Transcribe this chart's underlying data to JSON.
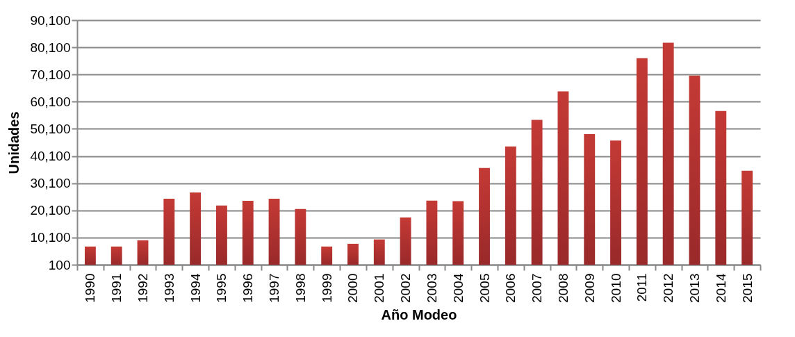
{
  "chart_data": {
    "type": "bar",
    "xlabel": "Año Modeo",
    "ylabel": "Unidades",
    "categories": [
      "1990",
      "1991",
      "1992",
      "1993",
      "1994",
      "1995",
      "1996",
      "1997",
      "1998",
      "1999",
      "2000",
      "2001",
      "2002",
      "2003",
      "2004",
      "2005",
      "2006",
      "2007",
      "2008",
      "2009",
      "2010",
      "2011",
      "2012",
      "2013",
      "2014",
      "2015"
    ],
    "values": [
      6800,
      6800,
      9100,
      24400,
      26700,
      21900,
      23600,
      24400,
      20600,
      6800,
      7800,
      9400,
      17500,
      23700,
      23500,
      35700,
      43600,
      53400,
      63900,
      48200,
      45800,
      76100,
      81800,
      69700,
      56700,
      34700
    ],
    "color": "#c43a35",
    "ylim": [
      100,
      90100
    ],
    "yticks": [
      {
        "value": 100,
        "label": "100"
      },
      {
        "value": 10100,
        "label": "10,100"
      },
      {
        "value": 20100,
        "label": "20,100"
      },
      {
        "value": 30100,
        "label": "30,100"
      },
      {
        "value": 40100,
        "label": "40,100"
      },
      {
        "value": 50100,
        "label": "50,100"
      },
      {
        "value": 60100,
        "label": "60,100"
      },
      {
        "value": 70100,
        "label": "70,100"
      },
      {
        "value": 80100,
        "label": "80,100"
      },
      {
        "value": 90100,
        "label": "90,100"
      }
    ],
    "grid": "y"
  }
}
